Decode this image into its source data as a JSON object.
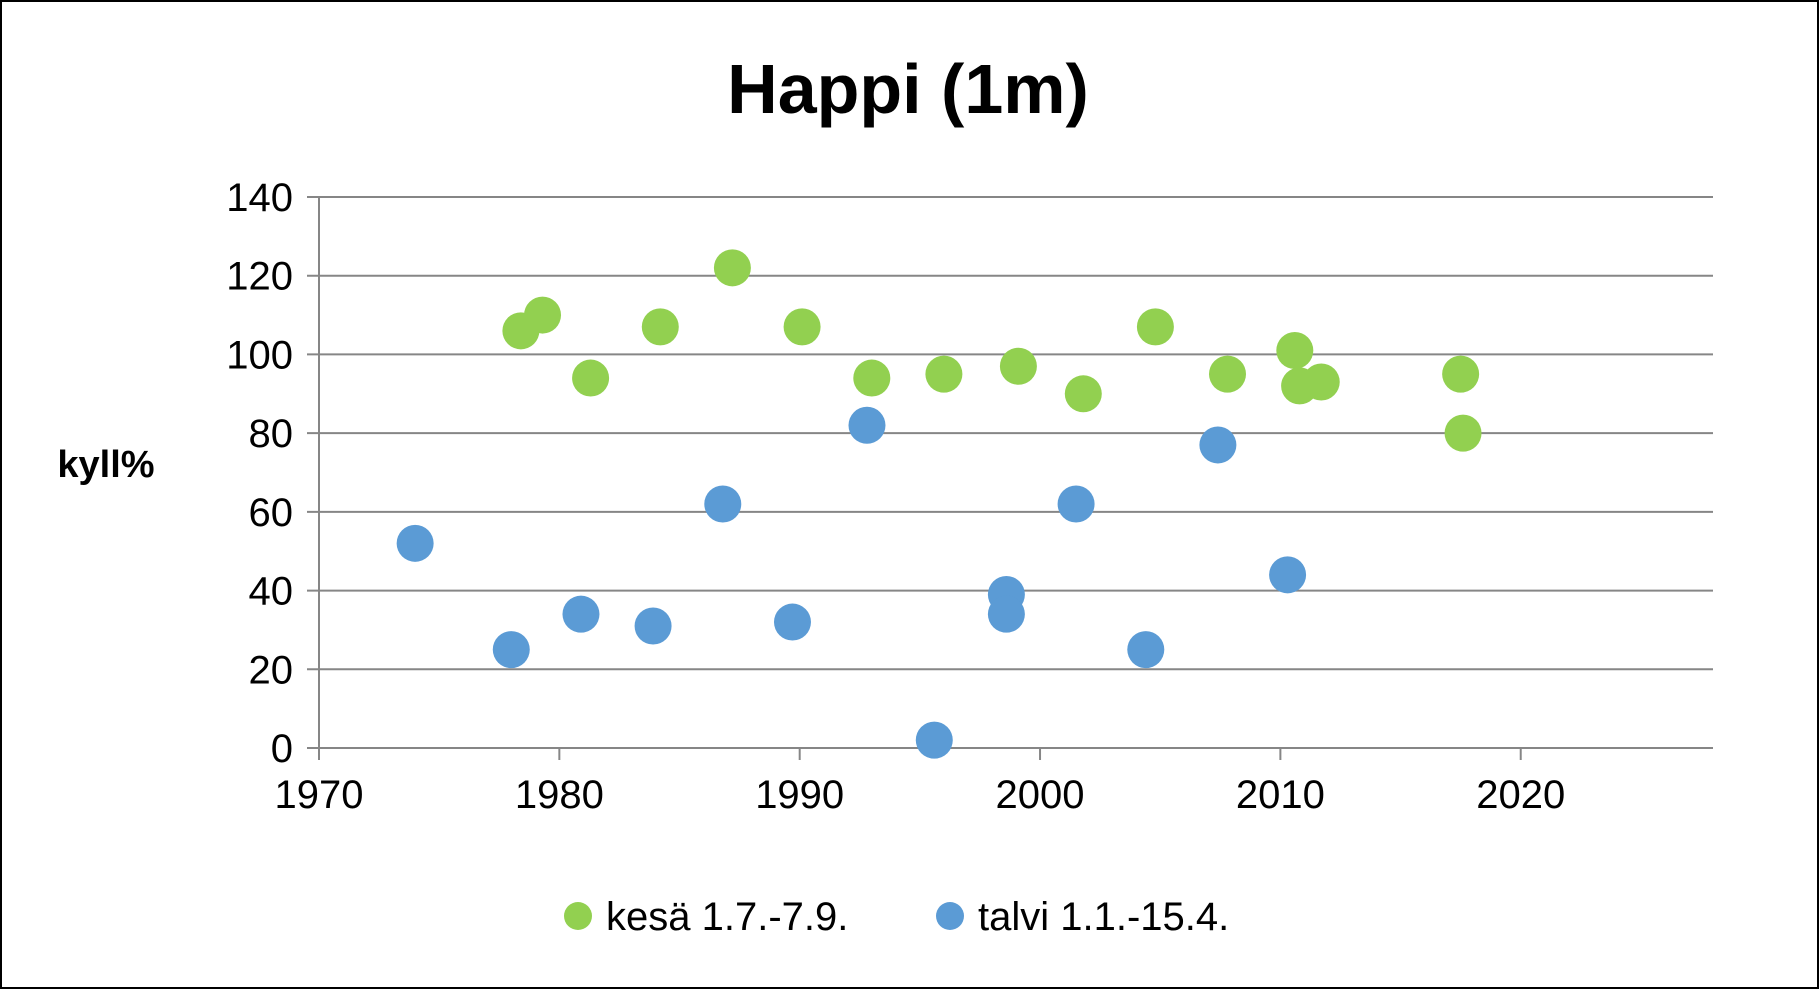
{
  "chart_data": {
    "type": "scatter",
    "title": "Happi (1m)",
    "xlabel": "",
    "ylabel": "kyll%",
    "xlim": [
      1970,
      2028
    ],
    "ylim": [
      0,
      140
    ],
    "xticks": [
      1970,
      1980,
      1990,
      2000,
      2010,
      2020
    ],
    "yticks": [
      0,
      20,
      40,
      60,
      80,
      100,
      120,
      140
    ],
    "grid": "horizontal",
    "legend": "bottom",
    "series": [
      {
        "name": "kesä 1.7.-7.9.",
        "color": "#92d050",
        "points": [
          [
            1978.4,
            106
          ],
          [
            1979.3,
            110
          ],
          [
            1981.3,
            94
          ],
          [
            1984.2,
            107
          ],
          [
            1987.2,
            122
          ],
          [
            1990.1,
            107
          ],
          [
            1993.0,
            94
          ],
          [
            1996.0,
            95
          ],
          [
            1999.1,
            97
          ],
          [
            2001.8,
            90
          ],
          [
            2004.8,
            107
          ],
          [
            2007.8,
            95
          ],
          [
            2010.6,
            101
          ],
          [
            2010.8,
            92
          ],
          [
            2011.7,
            93
          ],
          [
            2017.5,
            95
          ],
          [
            2017.6,
            80
          ]
        ]
      },
      {
        "name": "talvi 1.1.-15.4.",
        "color": "#5b9bd5",
        "points": [
          [
            1974.0,
            52
          ],
          [
            1978.0,
            25
          ],
          [
            1980.9,
            34
          ],
          [
            1983.9,
            31
          ],
          [
            1986.8,
            62
          ],
          [
            1989.7,
            32
          ],
          [
            1992.8,
            82
          ],
          [
            1995.6,
            2
          ],
          [
            1998.6,
            39
          ],
          [
            1998.6,
            34
          ],
          [
            2001.5,
            62
          ],
          [
            2004.4,
            25
          ],
          [
            2007.4,
            77
          ],
          [
            2010.3,
            44
          ]
        ]
      }
    ]
  }
}
